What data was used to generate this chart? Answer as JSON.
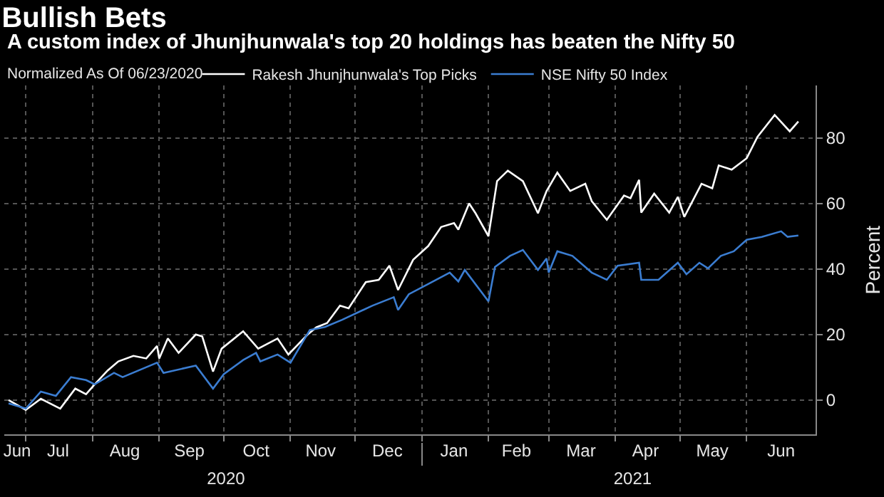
{
  "chart_data": {
    "type": "line",
    "title": "Bullish Bets",
    "subtitle": "A custom index of Jhunjhunwala's top 20 holdings has beaten the Nifty 50",
    "ylabel": "Percent",
    "annotations": [
      "Normalized As Of 06/23/2020"
    ],
    "legend": "top left",
    "grid": true,
    "line_style": "solid",
    "marker": "none",
    "xlim": [
      "2020-06-21",
      "2021-07-03"
    ],
    "xticks": [
      {
        "value": "2020-06-27",
        "label": "Jun"
      },
      {
        "value": "2020-07-16",
        "label": "Jul"
      },
      {
        "value": "2020-08-16",
        "label": "Aug"
      },
      {
        "value": "2020-09-15",
        "label": "Sep"
      },
      {
        "value": "2020-10-16",
        "label": "Oct"
      },
      {
        "value": "2020-11-15",
        "label": "Nov"
      },
      {
        "value": "2020-12-16",
        "label": "Dec"
      },
      {
        "value": "2021-01-16",
        "label": "Jan"
      },
      {
        "value": "2021-02-14",
        "label": "Feb"
      },
      {
        "value": "2021-03-16",
        "label": "Mar"
      },
      {
        "value": "2021-04-15",
        "label": "Apr"
      },
      {
        "value": "2021-05-16",
        "label": "May"
      },
      {
        "value": "2021-06-17",
        "label": "Jun"
      },
      {
        "value": "2020-07-01",
        "label": null
      },
      {
        "value": "2020-08-01",
        "label": null
      },
      {
        "value": "2020-09-01",
        "label": null
      },
      {
        "value": "2020-10-01",
        "label": null
      },
      {
        "value": "2020-11-01",
        "label": null
      },
      {
        "value": "2020-12-01",
        "label": null
      },
      {
        "value": "2021-01-01",
        "label": null
      },
      {
        "value": "2021-02-01",
        "label": null
      },
      {
        "value": "2021-03-01",
        "label": null
      },
      {
        "value": "2021-04-01",
        "label": null
      },
      {
        "value": "2021-05-01",
        "label": null
      },
      {
        "value": "2021-06-01",
        "label": null
      }
    ],
    "x2lim": [
      "2020-06-21",
      "2021-07-03"
    ],
    "x2ticks": [
      {
        "value": "2020-10-02",
        "label": "2020"
      },
      {
        "value": "2021-01-01",
        "label": null
      },
      {
        "value": "2021-04-09",
        "label": "2021"
      }
    ],
    "ylim": [
      -10.5,
      96
    ],
    "yticks": [
      0,
      20,
      40,
      60,
      80
    ],
    "series": [
      {
        "name": "Rakesh Jhunjhunwala's Top Picks",
        "color": "#ffffff",
        "x": [
          "2020-06-23",
          "2020-07-01",
          "2020-07-08",
          "2020-07-17",
          "2020-07-24",
          "2020-07-29",
          "2020-08-02",
          "2020-08-08",
          "2020-08-13",
          "2020-08-20",
          "2020-08-26",
          "2020-08-31",
          "2020-09-01",
          "2020-09-05",
          "2020-09-10",
          "2020-09-18",
          "2020-09-21",
          "2020-09-26",
          "2020-09-30",
          "2020-10-10",
          "2020-10-17",
          "2020-10-26",
          "2020-10-31",
          "2020-11-09",
          "2020-11-13",
          "2020-11-18",
          "2020-11-24",
          "2020-11-28",
          "2020-12-06",
          "2020-12-12",
          "2020-12-17",
          "2020-12-21",
          "2020-12-28",
          "2021-01-04",
          "2021-01-10",
          "2021-01-16",
          "2021-01-18",
          "2021-01-23",
          "2021-01-26",
          "2021-02-01",
          "2021-02-05",
          "2021-02-10",
          "2021-02-17",
          "2021-02-24",
          "2021-02-28",
          "2021-03-05",
          "2021-03-11",
          "2021-03-18",
          "2021-03-21",
          "2021-03-28",
          "2021-04-05",
          "2021-04-08",
          "2021-04-12",
          "2021-04-13",
          "2021-04-19",
          "2021-04-26",
          "2021-04-30",
          "2021-05-03",
          "2021-05-11",
          "2021-05-16",
          "2021-05-19",
          "2021-05-25",
          "2021-06-01",
          "2021-06-06",
          "2021-06-14",
          "2021-06-21",
          "2021-06-25"
        ],
        "values": [
          0,
          -3,
          0.4,
          -2.6,
          3.5,
          1.8,
          4.8,
          9,
          11.8,
          13.5,
          12.7,
          16.5,
          12.7,
          18.8,
          14.4,
          20,
          19.4,
          8.7,
          15.7,
          21,
          15.7,
          18.8,
          13.9,
          20,
          22.2,
          23.5,
          28.8,
          28,
          36,
          36.7,
          41,
          33.6,
          42.8,
          47,
          52.8,
          54,
          52,
          60,
          57,
          50,
          66.8,
          70,
          66.8,
          57,
          63.8,
          69.4,
          63.8,
          66,
          60.7,
          55,
          62.4,
          61.6,
          67.2,
          57.2,
          63,
          57.2,
          62,
          55.9,
          66,
          64.6,
          71.6,
          70.3,
          73.8,
          80.3,
          87,
          82,
          85
        ]
      },
      {
        "name": "NSE Nifty 50 Index",
        "color": "#3b7dd1",
        "x": [
          "2020-06-23",
          "2020-07-01",
          "2020-07-08",
          "2020-07-15",
          "2020-07-22",
          "2020-07-29",
          "2020-08-02",
          "2020-08-11",
          "2020-08-15",
          "2020-08-31",
          "2020-09-03",
          "2020-09-18",
          "2020-09-26",
          "2020-10-01",
          "2020-10-10",
          "2020-10-16",
          "2020-10-18",
          "2020-10-26",
          "2020-11-01",
          "2020-11-10",
          "2020-11-17",
          "2020-11-25",
          "2020-12-09",
          "2020-12-19",
          "2020-12-21",
          "2020-12-26",
          "2021-01-04",
          "2021-01-14",
          "2021-01-18",
          "2021-01-21",
          "2021-02-01",
          "2021-02-04",
          "2021-02-11",
          "2021-02-17",
          "2021-02-24",
          "2021-02-28",
          "2021-03-01",
          "2021-03-05",
          "2021-03-12",
          "2021-03-21",
          "2021-03-28",
          "2021-04-02",
          "2021-04-12",
          "2021-04-13",
          "2021-04-21",
          "2021-04-30",
          "2021-05-04",
          "2021-05-10",
          "2021-05-14",
          "2021-05-20",
          "2021-05-26",
          "2021-06-01",
          "2021-06-08",
          "2021-06-17",
          "2021-06-20",
          "2021-06-25"
        ],
        "values": [
          -1,
          -2.6,
          2.6,
          1.3,
          7,
          6.1,
          4.8,
          8.3,
          7,
          11.4,
          8.3,
          10.5,
          3.5,
          7.9,
          12.2,
          14.4,
          11.8,
          13.9,
          11.4,
          21.4,
          22.3,
          24.5,
          28.8,
          31.4,
          27.5,
          32.3,
          35.4,
          38.9,
          36.2,
          39.7,
          30.1,
          40.6,
          44,
          45.8,
          39.7,
          43.2,
          38.9,
          45.4,
          44,
          38.9,
          36.7,
          41,
          41.9,
          36.7,
          36.7,
          41.9,
          38.4,
          41.9,
          40.2,
          44,
          45.4,
          48.9,
          49.8,
          51.5,
          49.8,
          50.2
        ]
      }
    ]
  }
}
